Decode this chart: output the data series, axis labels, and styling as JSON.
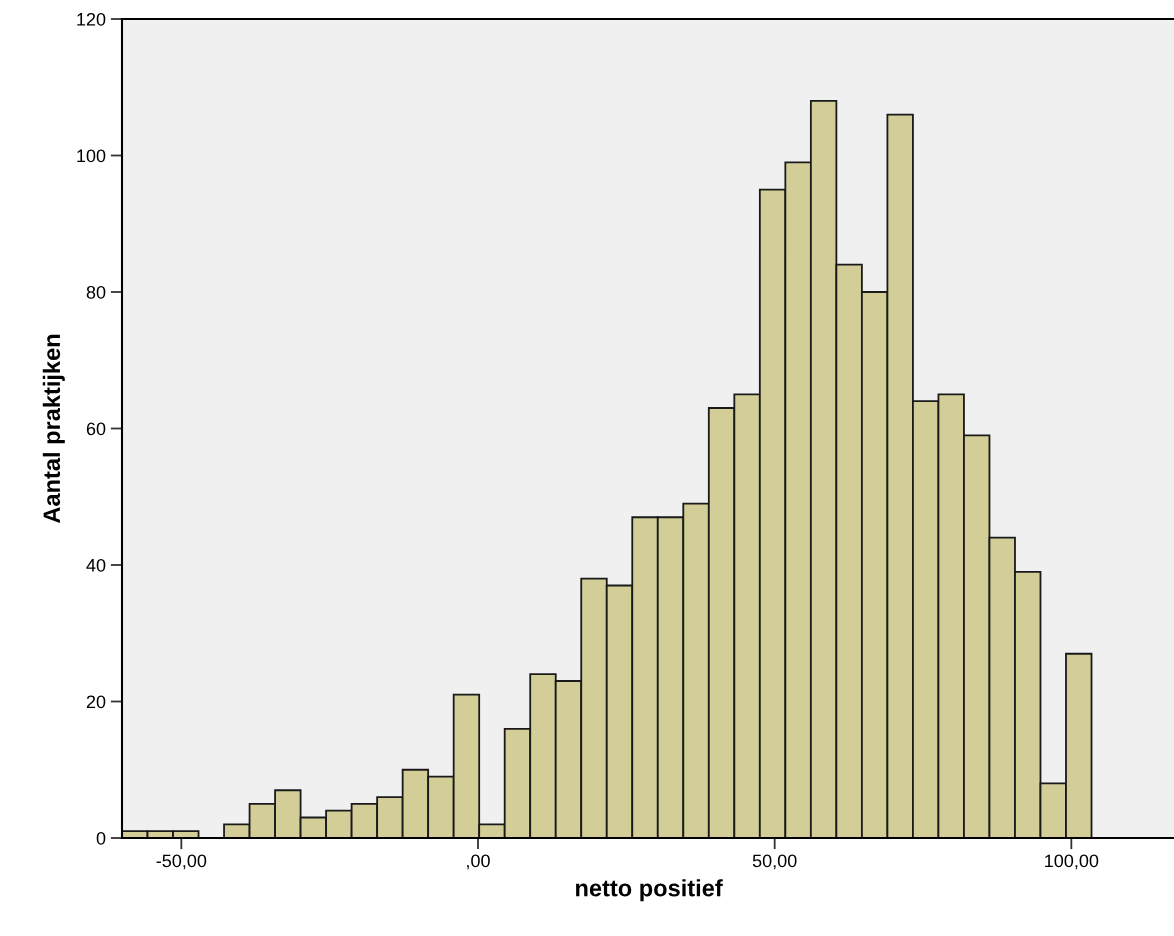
{
  "chart_data": {
    "type": "histogram",
    "xlabel": "netto positief",
    "ylabel": "Aantal praktijken",
    "bins": [
      -60.0,
      -55.7,
      -51.4,
      -47.1,
      -42.8,
      -38.5,
      -34.2,
      -29.9,
      -25.6,
      -21.3,
      -17.0,
      -12.7,
      -8.4,
      -4.1,
      0.2,
      4.5,
      8.8,
      13.1,
      17.4,
      21.7,
      26.0,
      30.3,
      34.6,
      38.9,
      43.2,
      47.5,
      51.8,
      56.1,
      60.4,
      64.7,
      69.0,
      73.3,
      77.6,
      81.9,
      86.2,
      90.5,
      94.8,
      99.1,
      103.4
    ],
    "values": [
      1,
      1,
      1,
      0,
      2,
      5,
      7,
      3,
      4,
      5,
      6,
      10,
      9,
      21,
      2,
      16,
      24,
      23,
      38,
      37,
      47,
      47,
      49,
      63,
      65,
      95,
      99,
      108,
      84,
      80,
      106,
      64,
      65,
      59,
      44,
      39,
      8,
      27
    ],
    "color": "#d3ce97",
    "xlim": [
      -60,
      117.5
    ],
    "ylim": [
      0,
      120
    ],
    "xticks": [
      {
        "value": -50,
        "label": "-50,00"
      },
      {
        "value": 0,
        "label": ",00"
      },
      {
        "value": 50,
        "label": "50,00"
      },
      {
        "value": 100,
        "label": "100,00"
      }
    ],
    "yticks": [
      0,
      20,
      40,
      60,
      80,
      100,
      120
    ],
    "grid": false
  }
}
